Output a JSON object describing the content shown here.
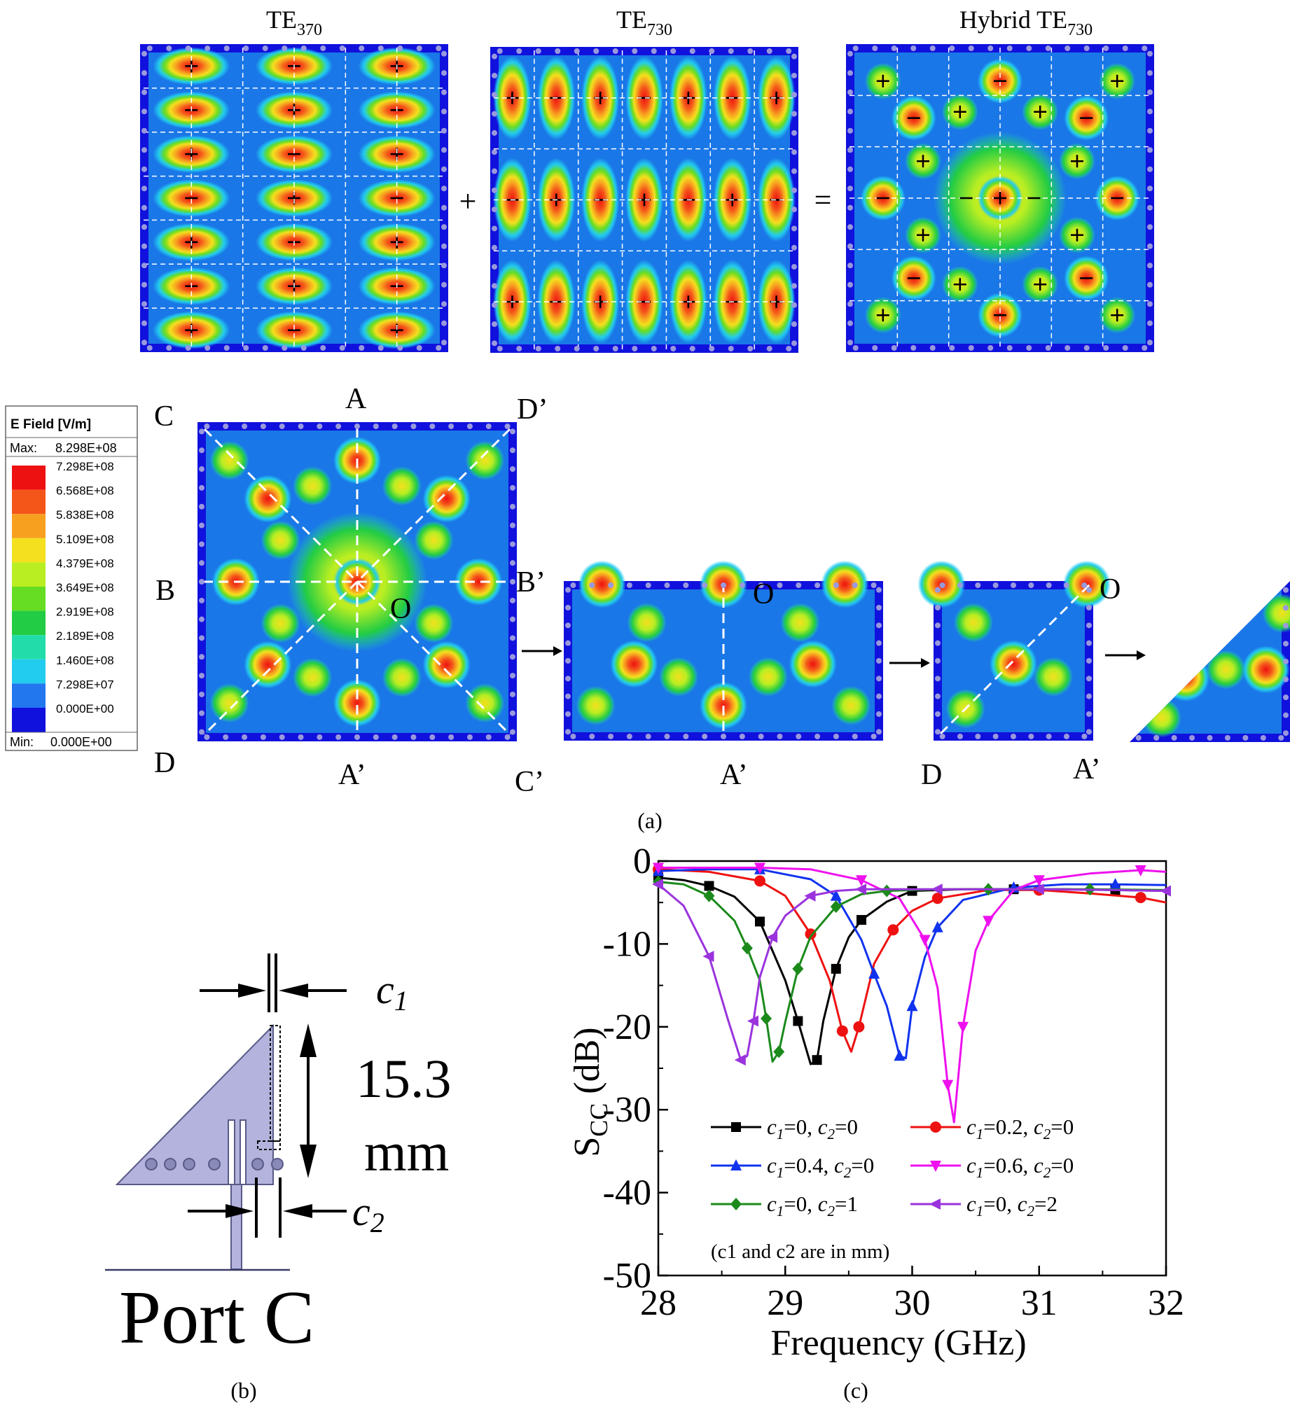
{
  "figure": {
    "top_titles": {
      "te370": {
        "base": "TE",
        "sub": "370"
      },
      "te730": {
        "base": "TE",
        "sub": "730"
      },
      "hybrid": {
        "base": "Hybrid TE",
        "sub": "730"
      }
    },
    "operators": {
      "plus": "+",
      "equals": "="
    },
    "legend": {
      "title": "E Field [V/m]",
      "max_label": "Max:",
      "max_value": "8.298E+08",
      "min_label": "Min:",
      "min_value": "0.000E+00",
      "entries": [
        {
          "value": "7.298E+08",
          "color": "#ee1111"
        },
        {
          "value": "6.568E+08",
          "color": "#f4561a"
        },
        {
          "value": "5.838E+08",
          "color": "#f7a020"
        },
        {
          "value": "5.109E+08",
          "color": "#f4e01e"
        },
        {
          "value": "4.379E+08",
          "color": "#b8ee22"
        },
        {
          "value": "3.649E+08",
          "color": "#66dd22"
        },
        {
          "value": "2.919E+08",
          "color": "#22cc44"
        },
        {
          "value": "2.189E+08",
          "color": "#22ddaa"
        },
        {
          "value": "1.460E+08",
          "color": "#22ccee"
        },
        {
          "value": "7.298E+07",
          "color": "#2277ee"
        },
        {
          "value": "0.000E+00",
          "color": "#1111dd"
        }
      ]
    },
    "corner_labels": {
      "C": "C",
      "A": "A",
      "D_prime": "D’",
      "B": "B",
      "B_prime": "B’",
      "O": "O",
      "D": "D",
      "A_prime": "A’",
      "C_prime": "C’"
    },
    "panel_labels": {
      "a": "(a)",
      "b": "(b)",
      "c": "(c)"
    },
    "port_diagram": {
      "c1": "c",
      "c1_sub": "1",
      "c2": "c",
      "c2_sub": "2",
      "length_value": "15.3",
      "length_unit": "mm",
      "port_label": "Port C"
    }
  },
  "chart_data": {
    "type": "line",
    "title": "",
    "xlabel": "Frequency (GHz)",
    "ylabel_main": "S",
    "ylabel_sub": "CC",
    "ylabel_unit": " (dB)",
    "xlim": [
      28,
      32
    ],
    "ylim": [
      -50,
      0
    ],
    "xticks": [
      "28",
      "29",
      "30",
      "31",
      "32"
    ],
    "yticks": [
      "0",
      "-10",
      "-20",
      "-30",
      "-40",
      "-50"
    ],
    "legend_note": "(c1 and c2 are in mm)",
    "series": [
      {
        "name": "c1=0, c2=0",
        "c1": "0",
        "c2": "0",
        "color": "#000000",
        "marker": "square",
        "x": [
          28.0,
          28.2,
          28.4,
          28.6,
          28.8,
          29.0,
          29.1,
          29.2,
          29.25,
          29.3,
          29.4,
          29.5,
          29.6,
          29.8,
          30.0,
          30.4,
          30.8,
          31.2,
          31.6,
          32.0
        ],
        "y": [
          -2.0,
          -2.3,
          -3.0,
          -4.3,
          -7.3,
          -14.4,
          -19.3,
          -24.5,
          -24.0,
          -19.3,
          -13.0,
          -9.2,
          -7.1,
          -4.9,
          -3.6,
          -3.4,
          -3.4,
          -3.4,
          -3.5,
          -3.6
        ]
      },
      {
        "name": "c1=0.2, c2=0",
        "c1": "0.2",
        "c2": "0",
        "color": "#ee1111",
        "marker": "circle",
        "x": [
          28.0,
          28.4,
          28.8,
          29.0,
          29.2,
          29.35,
          29.45,
          29.52,
          29.58,
          29.7,
          29.85,
          30.0,
          30.2,
          30.6,
          31.0,
          31.4,
          31.8,
          32.0
        ],
        "y": [
          -1.0,
          -1.3,
          -2.4,
          -4.2,
          -8.8,
          -14.4,
          -20.5,
          -23.0,
          -20.0,
          -12.4,
          -8.3,
          -6.0,
          -4.5,
          -3.5,
          -3.5,
          -3.9,
          -4.4,
          -5.0
        ]
      },
      {
        "name": "c1=0.4, c2=0",
        "c1": "0.4",
        "c2": "0",
        "color": "#1133ee",
        "marker": "triangle-up",
        "x": [
          28.0,
          28.4,
          28.8,
          29.2,
          29.4,
          29.6,
          29.7,
          29.8,
          29.9,
          29.95,
          30.0,
          30.1,
          30.2,
          30.4,
          30.8,
          31.2,
          31.6,
          32.0
        ],
        "y": [
          -1.2,
          -1.0,
          -1.0,
          -2.2,
          -4.2,
          -9.5,
          -13.6,
          -17.5,
          -23.5,
          -23.8,
          -17.5,
          -11.6,
          -8.0,
          -4.7,
          -3.2,
          -2.8,
          -2.8,
          -2.9
        ]
      },
      {
        "name": "c1=0.6, c2=0",
        "c1": "0.6",
        "c2": "0",
        "color": "#ee11ee",
        "marker": "triangle-down",
        "x": [
          28.0,
          28.4,
          28.8,
          29.2,
          29.6,
          29.9,
          30.1,
          30.2,
          30.28,
          30.33,
          30.4,
          30.5,
          30.6,
          30.8,
          31.0,
          31.4,
          31.8,
          32.0
        ],
        "y": [
          -0.8,
          -0.8,
          -0.8,
          -1.0,
          -2.3,
          -4.5,
          -9.5,
          -15.3,
          -27.0,
          -31.5,
          -20.0,
          -10.8,
          -7.2,
          -3.5,
          -2.3,
          -1.5,
          -1.1,
          -1.3
        ]
      },
      {
        "name": "c1=0, c2=1",
        "c1": "0",
        "c2": "1",
        "color": "#1b8a1b",
        "marker": "diamond",
        "x": [
          28.0,
          28.2,
          28.4,
          28.6,
          28.7,
          28.8,
          28.85,
          28.9,
          28.95,
          29.0,
          29.1,
          29.2,
          29.4,
          29.6,
          29.8,
          30.2,
          30.6,
          31.0,
          31.4,
          32.0
        ],
        "y": [
          -2.5,
          -2.8,
          -4.2,
          -7.2,
          -10.5,
          -14.4,
          -19.0,
          -24.2,
          -23.0,
          -19.4,
          -13.0,
          -9.1,
          -5.5,
          -4.0,
          -3.6,
          -3.4,
          -3.4,
          -3.4,
          -3.4,
          -3.5
        ]
      },
      {
        "name": "c1=0, c2=2",
        "c1": "0",
        "c2": "2",
        "color": "#9a33dd",
        "marker": "triangle-left",
        "x": [
          28.0,
          28.2,
          28.4,
          28.55,
          28.65,
          28.7,
          28.75,
          28.8,
          28.9,
          29.0,
          29.2,
          29.4,
          29.6,
          29.8,
          30.2,
          30.6,
          31.0,
          31.6,
          32.0
        ],
        "y": [
          -2.8,
          -5.4,
          -11.5,
          -19.2,
          -24.0,
          -23.5,
          -19.3,
          -14.0,
          -9.2,
          -6.6,
          -4.2,
          -3.6,
          -3.4,
          -3.4,
          -3.4,
          -3.4,
          -3.4,
          -3.5,
          -3.6
        ]
      }
    ]
  }
}
